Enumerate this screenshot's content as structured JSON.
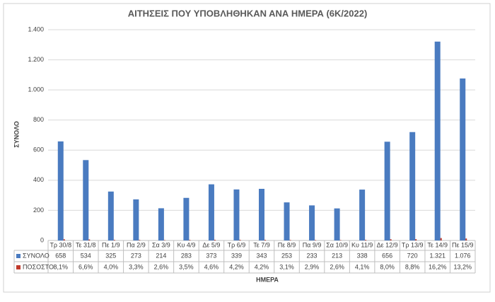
{
  "chart_data": {
    "type": "bar",
    "title": "ΑΙΤΗΣΕΙΣ ΠΟΥ ΥΠΟΒΛΗΘΗΚΑΝ ΑΝΑ ΗΜΕΡΑ (6Κ/2022)",
    "y_label": "ΣΥΝΟΛΟ",
    "x_label": "ΗΜΕΡΑ",
    "categories": [
      "Τρ 30/8",
      "Τε 31/8",
      "Πε 1/9",
      "Πα 2/9",
      "Σα 3/9",
      "Κυ 4/9",
      "Δε 5/9",
      "Τρ 6/9",
      "Τε 7/9",
      "Πε 8/9",
      "Πα 9/9",
      "Σα 10/9",
      "Κυ 11/9",
      "Δε 12/9",
      "Τρ 13/9",
      "Τε 14/9",
      "Πε 15/9"
    ],
    "series": [
      {
        "name": "ΣΥΝΟΛΟ",
        "color": "#4a7bc0",
        "values": [
          658,
          534,
          325,
          273,
          214,
          283,
          373,
          339,
          343,
          253,
          233,
          213,
          338,
          656,
          720,
          1321,
          1076
        ],
        "value_labels": [
          "658",
          "534",
          "325",
          "273",
          "214",
          "283",
          "373",
          "339",
          "343",
          "253",
          "233",
          "213",
          "338",
          "656",
          "720",
          "1.321",
          "1.076"
        ]
      },
      {
        "name": "ΠΟΣΟΣΤΟ",
        "color": "#c0392b",
        "values": [
          8.1,
          6.6,
          4.0,
          3.3,
          2.6,
          3.5,
          4.6,
          4.2,
          4.2,
          3.1,
          2.9,
          2.6,
          4.1,
          8.0,
          8.8,
          16.2,
          13.2
        ],
        "value_labels": [
          "8,1%",
          "6,6%",
          "4,0%",
          "3,3%",
          "2,6%",
          "3,5%",
          "4,6%",
          "4,2%",
          "4,2%",
          "3,1%",
          "2,9%",
          "2,6%",
          "4,1%",
          "8,0%",
          "8,8%",
          "16,2%",
          "13,2%"
        ]
      }
    ],
    "ylim": [
      0,
      1400
    ],
    "yticks": [
      0,
      200,
      400,
      600,
      800,
      {
        "value": 1000,
        "label": "1.000"
      },
      {
        "value": 1200,
        "label": "1.200"
      },
      {
        "value": 1400,
        "label": "1.400"
      }
    ],
    "grid": true
  }
}
